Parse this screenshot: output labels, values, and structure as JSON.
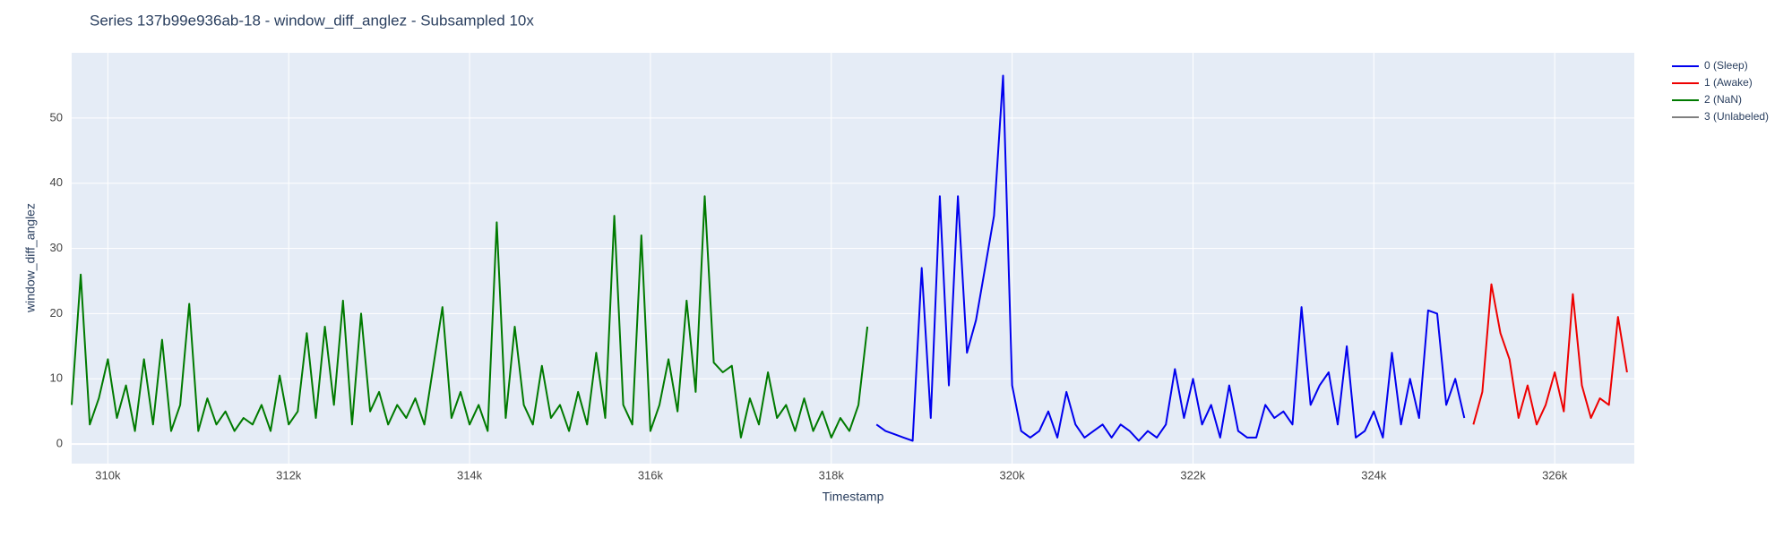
{
  "chart_data": {
    "type": "line",
    "title": "Series 137b99e936ab-18 - window_diff_anglez - Subsampled 10x",
    "x_label": "Timestamp",
    "y_label": "window_diff_anglez",
    "xlim": [
      309600,
      326880
    ],
    "ylim": [
      -3,
      60
    ],
    "xticks": [
      {
        "value": 310000,
        "label": "310k"
      },
      {
        "value": 312000,
        "label": "312k"
      },
      {
        "value": 314000,
        "label": "314k"
      },
      {
        "value": 316000,
        "label": "316k"
      },
      {
        "value": 318000,
        "label": "318k"
      },
      {
        "value": 320000,
        "label": "320k"
      },
      {
        "value": 322000,
        "label": "322k"
      },
      {
        "value": 324000,
        "label": "324k"
      },
      {
        "value": 326000,
        "label": "326k"
      }
    ],
    "yticks": [
      0,
      10,
      20,
      30,
      40,
      50
    ],
    "grid": true,
    "legend": "right",
    "series": [
      {
        "name": "0 (Sleep)",
        "color": "#0000ee",
        "x": [
          318500,
          318600,
          318700,
          318800,
          318900,
          319000,
          319100,
          319200,
          319300,
          319400,
          319500,
          319600,
          319700,
          319800,
          319900,
          320000,
          320100,
          320200,
          320300,
          320400,
          320500,
          320600,
          320700,
          320800,
          320900,
          321000,
          321100,
          321200,
          321300,
          321400,
          321500,
          321600,
          321700,
          321800,
          321900,
          322000,
          322100,
          322200,
          322300,
          322400,
          322500,
          322600,
          322700,
          322800,
          322900,
          323000,
          323100,
          323200,
          323300,
          323400,
          323500,
          323600,
          323700,
          323800,
          323900,
          324000,
          324100,
          324200,
          324300,
          324400,
          324500,
          324600,
          324700,
          324800,
          324900,
          325000
        ],
        "values": [
          3,
          2,
          1.5,
          1,
          0.5,
          27,
          4,
          38,
          9,
          38,
          14,
          19,
          27,
          35,
          56.5,
          9,
          2,
          1,
          2,
          5,
          1,
          8,
          3,
          1,
          2,
          3,
          1,
          3,
          2,
          0.5,
          2,
          1,
          3,
          11.5,
          4,
          10,
          3,
          6,
          1,
          9,
          2,
          1,
          1,
          6,
          4,
          5,
          3,
          21,
          6,
          9,
          11,
          3,
          15,
          1,
          2,
          5,
          1,
          14,
          3,
          10,
          4,
          20.5,
          20,
          6,
          10,
          4
        ]
      },
      {
        "name": "1 (Awake)",
        "color": "#ee0000",
        "x": [
          325100,
          325200,
          325300,
          325400,
          325500,
          325600,
          325700,
          325800,
          325900,
          326000,
          326100,
          326200,
          326300,
          326400,
          326500,
          326600,
          326700,
          326800
        ],
        "values": [
          3,
          8,
          24.5,
          17,
          13,
          4,
          9,
          3,
          6,
          11,
          5,
          23,
          9,
          4,
          7,
          6,
          19.5,
          11
        ]
      },
      {
        "name": "2 (NaN)",
        "color": "#007a00",
        "x": [
          309600,
          309700,
          309800,
          309900,
          310000,
          310100,
          310200,
          310300,
          310400,
          310500,
          310600,
          310700,
          310800,
          310900,
          311000,
          311100,
          311200,
          311300,
          311400,
          311500,
          311600,
          311700,
          311800,
          311900,
          312000,
          312100,
          312200,
          312300,
          312400,
          312500,
          312600,
          312700,
          312800,
          312900,
          313000,
          313100,
          313200,
          313300,
          313400,
          313500,
          313600,
          313700,
          313800,
          313900,
          314000,
          314100,
          314200,
          314300,
          314400,
          314500,
          314600,
          314700,
          314800,
          314900,
          315000,
          315100,
          315200,
          315300,
          315400,
          315500,
          315600,
          315700,
          315800,
          315900,
          316000,
          316100,
          316200,
          316300,
          316400,
          316500,
          316600,
          316700,
          316800,
          316900,
          317000,
          317100,
          317200,
          317300,
          317400,
          317500,
          317600,
          317700,
          317800,
          317900,
          318000,
          318100,
          318200,
          318300,
          318400
        ],
        "values": [
          6,
          26,
          3,
          7,
          13,
          4,
          9,
          2,
          13,
          3,
          16,
          2,
          6,
          21.5,
          2,
          7,
          3,
          5,
          2,
          4,
          3,
          6,
          2,
          10.5,
          3,
          5,
          17,
          4,
          18,
          6,
          22,
          3,
          20,
          5,
          8,
          3,
          6,
          4,
          7,
          3,
          12,
          21,
          4,
          8,
          3,
          6,
          2,
          34,
          4,
          18,
          6,
          3,
          12,
          4,
          6,
          2,
          8,
          3,
          14,
          4,
          35,
          6,
          3,
          32,
          2,
          6,
          13,
          5,
          22,
          8,
          38,
          12.5,
          11,
          12,
          1,
          7,
          3,
          11,
          4,
          6,
          2,
          7,
          2,
          5,
          1,
          4,
          2,
          6,
          18
        ]
      },
      {
        "name": "3 (Unlabeled)",
        "color": "#808080",
        "x": [],
        "values": []
      }
    ]
  }
}
